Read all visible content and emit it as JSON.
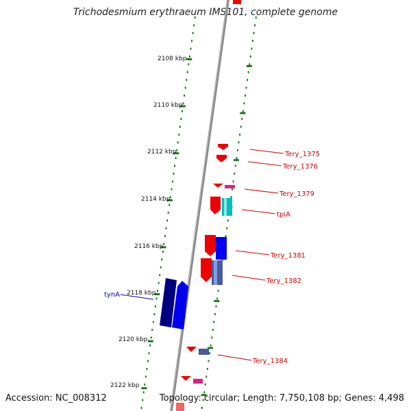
{
  "title": "Trichodesmium erythraeum IMS101, complete genome",
  "footer": {
    "accession": "Accession: NC_008312",
    "stats": "Topology: circular; Length: 7,750,108 bp; Genes: 4,498"
  },
  "colors": {
    "backbone": "#8a8a8a",
    "tick": "#1a7a1a",
    "gene_label_red": "#cc0000",
    "gene_label_blue": "#0000cc",
    "forward_gene": "#ee0000",
    "reverse_gene": "#0000ee",
    "navy_gene": "#000080",
    "cyan_gene": "#00bfbf",
    "magenta_gene": "#e0208a",
    "slate_gene": "#4a5aa0"
  },
  "ticks": [
    {
      "label": "2108 kbp",
      "position_kbp": 2108
    },
    {
      "label": "2110 kbp",
      "position_kbp": 2110
    },
    {
      "label": "2112 kbp",
      "position_kbp": 2112
    },
    {
      "label": "2114 kbp",
      "position_kbp": 2114
    },
    {
      "label": "2116 kbp",
      "position_kbp": 2116
    },
    {
      "label": "2118 kbp",
      "position_kbp": 2118
    },
    {
      "label": "2120 kbp",
      "position_kbp": 2120
    },
    {
      "label": "2122 kbp",
      "position_kbp": 2122
    }
  ],
  "gene_labels": [
    {
      "text": "Tery_1375",
      "color": "#cc0000"
    },
    {
      "text": "Tery_1376",
      "color": "#cc0000"
    },
    {
      "text": "Tery_1379",
      "color": "#cc0000"
    },
    {
      "text": "tpiA",
      "color": "#cc0000"
    },
    {
      "text": "Tery_1381",
      "color": "#cc0000"
    },
    {
      "text": "Tery_1382",
      "color": "#cc0000"
    },
    {
      "text": "tynA",
      "color": "#0000cc"
    },
    {
      "text": "Tery_1384",
      "color": "#cc0000"
    }
  ]
}
